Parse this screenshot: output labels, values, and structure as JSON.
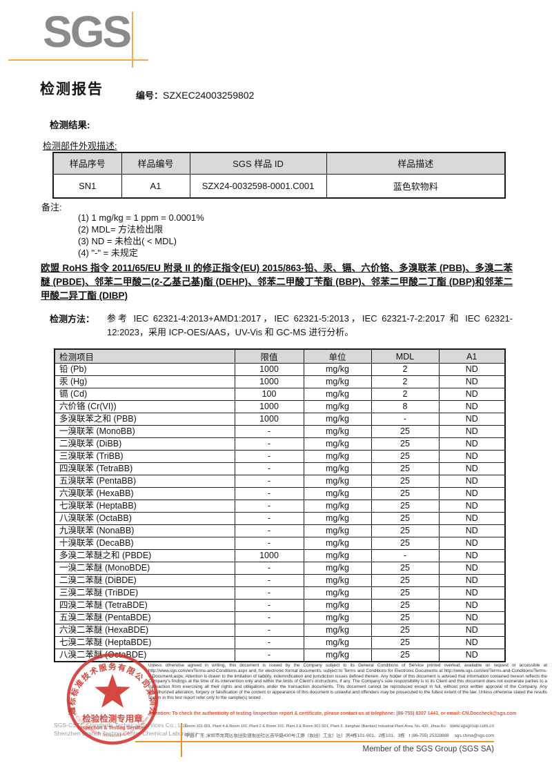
{
  "header": {
    "logo_text": "SGS",
    "title": "检测报告",
    "report_no_label": "编号：",
    "report_no": "SZXEC24003259802"
  },
  "results_section": {
    "heading": "检测结果:",
    "subheading": "检测部件外观描述:"
  },
  "sample_table": {
    "headers": [
      "样品序号",
      "样品编号",
      "SGS 样品 ID",
      "样品描述"
    ],
    "rows": [
      [
        "SN1",
        "A1",
        "SZX24-0032598-0001.C001",
        "蓝色软物料"
      ]
    ]
  },
  "notes": {
    "label": "备注:",
    "items": [
      "(1) 1 mg/kg = 1 ppm = 0.0001%",
      "(2) MDL=  方法检出限",
      "(3) ND = 未检出( < MDL)",
      "(4) \"-\" = 未规定"
    ]
  },
  "directive_statement": "欧盟 RoHS 指令 2011/65/EU 附录 II 的修正指令(EU) 2015/863-铅、汞、镉、六价铬、多溴联苯 (PBB)、多溴二苯醚 (PBDE)、邻苯二甲酸二(2-乙基己基)酯 (DEHP)、邻苯二甲酸丁苄酯 (BBP)、邻苯二甲酸二丁酯 (DBP)和邻苯二甲酸二异丁酯 (DIBP)",
  "method": {
    "label": "检测方法：",
    "text": "参考 IEC 62321-4:2013+AMD1:2017，IEC 62321-5:2013，IEC 62321-7-2:2017 和 IEC 62321-12:2023，采用 ICP-OES/AAS，UV-Vis 和 GC-MS 进行分析。"
  },
  "result_table": {
    "headers": [
      "检测项目",
      "限值",
      "单位",
      "MDL",
      "A1"
    ],
    "rows": [
      [
        "铅 (Pb)",
        "1000",
        "mg/kg",
        "2",
        "ND"
      ],
      [
        "汞 (Hg)",
        "1000",
        "mg/kg",
        "2",
        "ND"
      ],
      [
        "镉 (Cd)",
        "100",
        "mg/kg",
        "2",
        "ND"
      ],
      [
        "六价铬 (Cr(VI))",
        "1000",
        "mg/kg",
        "8",
        "ND"
      ],
      [
        "多溴联苯之和 (PBB)",
        "1000",
        "mg/kg",
        "-",
        "ND"
      ],
      [
        "一溴联苯 (MonoBB)",
        "-",
        "mg/kg",
        "25",
        "ND"
      ],
      [
        "二溴联苯 (DiBB)",
        "-",
        "mg/kg",
        "25",
        "ND"
      ],
      [
        "三溴联苯 (TriBB)",
        "-",
        "mg/kg",
        "25",
        "ND"
      ],
      [
        "四溴联苯 (TetraBB)",
        "-",
        "mg/kg",
        "25",
        "ND"
      ],
      [
        "五溴联苯 (PentaBB)",
        "-",
        "mg/kg",
        "25",
        "ND"
      ],
      [
        "六溴联苯 (HexaBB)",
        "-",
        "mg/kg",
        "25",
        "ND"
      ],
      [
        "七溴联苯 (HeptaBB)",
        "-",
        "mg/kg",
        "25",
        "ND"
      ],
      [
        "八溴联苯 (OctaBB)",
        "-",
        "mg/kg",
        "25",
        "ND"
      ],
      [
        "九溴联苯 (NonaBB)",
        "-",
        "mg/kg",
        "25",
        "ND"
      ],
      [
        "十溴联苯 (DecaBB)",
        "-",
        "mg/kg",
        "25",
        "ND"
      ],
      [
        "多溴二苯醚之和 (PBDE)",
        "1000",
        "mg/kg",
        "-",
        "ND"
      ],
      [
        "一溴二苯醚 (MonoBDE)",
        "-",
        "mg/kg",
        "25",
        "ND"
      ],
      [
        "二溴二苯醚 (DiBDE)",
        "-",
        "mg/kg",
        "25",
        "ND"
      ],
      [
        "三溴二苯醚 (TriBDE)",
        "-",
        "mg/kg",
        "25",
        "ND"
      ],
      [
        "四溴二苯醚 (TetraBDE)",
        "-",
        "mg/kg",
        "25",
        "ND"
      ],
      [
        "五溴二苯醚 (PentaBDE)",
        "-",
        "mg/kg",
        "25",
        "ND"
      ],
      [
        "六溴二苯醚 (HexaBDE)",
        "-",
        "mg/kg",
        "25",
        "ND"
      ],
      [
        "七溴二苯醚 (HeptaBDE)",
        "-",
        "mg/kg",
        "25",
        "ND"
      ],
      [
        "八溴二苯醚 (OctaBDE)",
        "-",
        "mg/kg",
        "25",
        "ND"
      ]
    ]
  },
  "footer": {
    "legal_text": "Unless otherwise agreed in writing, this document is issued by the Company subject to its General Conditions of Service printed overleaf, available on request or accessible at http://www.sgs.com/en/Terms-and-Conditions.aspx and, for electronic format documents, subject to Terms and Conditions for Electronic Documents at http://www.sgs.com/en/Terms-and-Conditions/Terms-e-Document.aspx. Attention is drawn to the limitation of liability, indemnification and jurisdiction issues defined therein. Any holder of this document is advised that information contained hereon reflects the Company's findings at the time of its intervention only and within the limits of Client's instructions, if any. The Company's sole responsibility is to its Client and this document does not exonerate parties to a transaction from exercising all their rights and obligations under the transaction documents. This document cannot be reproduced except in full, without prior written approval of the Company. Any unauthorized alteration, forgery or falsification of the content or appearance of this document is unlawful and offenders may be prosecuted to the fullest extent of the law. Unless otherwise stated the results shown in this test report refer only to the sample(s) tested .",
    "attention_text": "Attention: To check the authenticity of testing /inspection report & certificate, please contact us at telephone: (86-755) 8307 1443, or email: CN.Doccheck@sgs.com",
    "company_line1": "SGS-CSTC Standards Technical Services Co., Ltd.",
    "company_line2": "Shenzhen Branch Testing Center Chemical Laboratory",
    "address_en": "Room 101-901, Plant 4 & Room 101, Plant 2 & Room 101, Plant 3 & Room 301-501, Plant 3, Jianghao (Bantian) Industrial Plant Area, No. 430, Jihua Road, Bantian Community, Bantian Street, Longgang District, Shenzhen, Guangdong, China 518129",
    "website": "www.sgsgroup.com.cn",
    "address_cn": "中国·广东·深圳市龙岗区坂田街道坂田社区吉华路430号江灏（坂田）工业厂区厂房4栋101-901、2栋101、3栋101、3栋301-501  邮编：518129",
    "telephone": "t (86-755) 25328888",
    "email": "sgs.china@sgs.com",
    "member_text": "Member of the SGS Group (SGS SA)",
    "stamp": {
      "ring_text": "通标标准技术服务有限公司深圳分公司",
      "ring_text_en": "SGS-CSTC Standards Technical Services Shenzhen Branch",
      "center_text_cn": "检验检测专用章",
      "center_text_en": "Inspection & Testing Services"
    }
  },
  "colors": {
    "brand_orange": "#f0a74f",
    "footer_orange": "#ed8f2b",
    "logo_gray": "#8a8a8d",
    "table_header_bg": "#d9d9d9",
    "stamp_red": "#cf342c",
    "attention_red": "#e65531"
  }
}
